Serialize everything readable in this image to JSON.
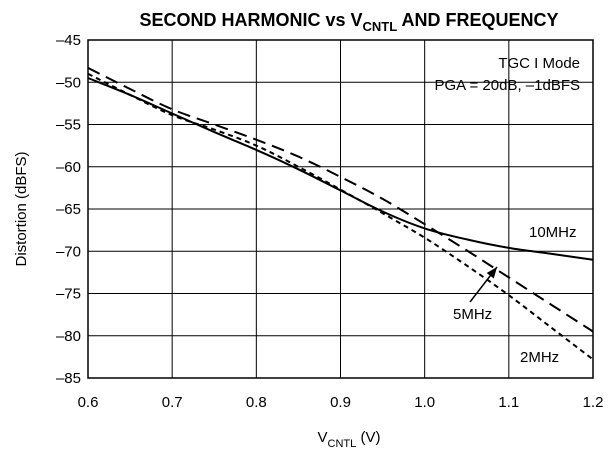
{
  "chart_data": {
    "type": "line",
    "title": {
      "main": "SECOND HARMONIC vs V",
      "sub": "CNTL",
      "tail": " AND FREQUENCY"
    },
    "xlabel": {
      "main": "V",
      "sub": "CNTL",
      "tail": " (V)"
    },
    "ylabel": "Distortion (dBFS)",
    "xlim": [
      0.6,
      1.2
    ],
    "ylim": [
      -85,
      -45
    ],
    "x_ticks": [
      0.6,
      0.7,
      0.8,
      0.9,
      1.0,
      1.1,
      1.2
    ],
    "x_tick_labels": [
      "0.6",
      "0.7",
      "0.8",
      "0.9",
      "1.0",
      "1.1",
      "1.2"
    ],
    "y_ticks": [
      -45,
      -50,
      -55,
      -60,
      -65,
      -70,
      -75,
      -80,
      -85
    ],
    "y_tick_labels": [
      "–45",
      "–50",
      "–55",
      "–60",
      "–65",
      "–70",
      "–75",
      "–80",
      "–85"
    ],
    "grid": true,
    "annotations": [
      "TGC I Mode",
      "PGA = 20dB, –1dBFS"
    ],
    "series": [
      {
        "name": "10MHz",
        "style": "solid",
        "x": [
          0.6,
          0.65,
          0.7,
          0.75,
          0.8,
          0.85,
          0.9,
          0.95,
          1.0,
          1.05,
          1.1,
          1.15,
          1.2
        ],
        "y": [
          -49.5,
          -51.5,
          -53.7,
          -55.9,
          -58.0,
          -60.3,
          -62.8,
          -65.3,
          -67.3,
          -68.6,
          -69.6,
          -70.3,
          -71.0
        ]
      },
      {
        "name": "5MHz",
        "style": "long-dash",
        "x": [
          0.6,
          0.65,
          0.7,
          0.75,
          0.8,
          0.85,
          0.9,
          0.95,
          1.0,
          1.05,
          1.1,
          1.15,
          1.2
        ],
        "y": [
          -48.3,
          -50.8,
          -53.2,
          -55.0,
          -56.8,
          -58.8,
          -61.2,
          -63.8,
          -66.8,
          -69.9,
          -73.1,
          -76.3,
          -79.5
        ]
      },
      {
        "name": "2MHz",
        "style": "short-dash",
        "x": [
          0.6,
          0.65,
          0.7,
          0.75,
          0.8,
          0.85,
          0.9,
          0.95,
          1.0,
          1.05,
          1.1,
          1.15,
          1.2
        ],
        "y": [
          -49.0,
          -51.5,
          -53.9,
          -55.6,
          -57.5,
          -60.0,
          -62.7,
          -65.5,
          -68.4,
          -71.7,
          -75.2,
          -79.0,
          -82.8
        ]
      }
    ]
  }
}
